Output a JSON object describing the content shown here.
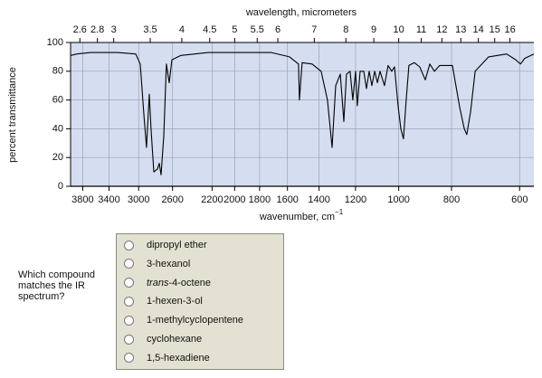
{
  "chart_data": {
    "type": "line",
    "title": "wavelength, micrometers",
    "x_label": "wavenumber, cm",
    "x_label_sup": "−1",
    "y_label": "percent transmittance",
    "xscale": "log",
    "xlim": [
      4000,
      565
    ],
    "ylim": [
      0,
      100
    ],
    "xticks": [
      3800,
      3400,
      3000,
      2600,
      2200,
      2000,
      1800,
      1600,
      1400,
      1200,
      1000,
      800,
      600
    ],
    "x2ticks": [
      2.6,
      2.8,
      3,
      3.5,
      4,
      4.5,
      5,
      5.5,
      6,
      7,
      8,
      9,
      10,
      11,
      12,
      13,
      14,
      15,
      16
    ],
    "yticks": [
      0,
      20,
      40,
      60,
      80,
      100
    ],
    "grid": true,
    "background": "#d5def0",
    "series": [
      {
        "color": "#000000",
        "x": [
          4000,
          3894,
          3677,
          3279,
          3038,
          2980,
          2935,
          2902,
          2868,
          2847,
          2814,
          2771,
          2750,
          2729,
          2698,
          2668,
          2637,
          2607,
          2509,
          2237,
          1913,
          1712,
          1586,
          1550,
          1527,
          1521,
          1504,
          1442,
          1388,
          1351,
          1325,
          1305,
          1280,
          1261,
          1247,
          1228,
          1214,
          1200,
          1191,
          1177,
          1159,
          1146,
          1133,
          1120,
          1107,
          1094,
          1082,
          1062,
          1046,
          1030,
          1018,
          1002,
          991,
          980,
          969,
          958,
          936,
          915,
          894,
          877,
          860,
          841,
          797,
          773,
          758,
          750,
          738,
          724,
          684,
          634,
          610,
          598,
          587,
          565
        ],
        "values": [
          91,
          92,
          93,
          93,
          92,
          85,
          50,
          27,
          64,
          40,
          10,
          12,
          16,
          8,
          35,
          85,
          72,
          88,
          91,
          93,
          93,
          93,
          90,
          87,
          85,
          60,
          86,
          85,
          80,
          60,
          27,
          70,
          78,
          45,
          78,
          80,
          60,
          80,
          56,
          80,
          80,
          68,
          80,
          70,
          80,
          72,
          80,
          70,
          84,
          80,
          83,
          55,
          40,
          33,
          60,
          84,
          86,
          83,
          74,
          85,
          80,
          84,
          84,
          55,
          40,
          36,
          52,
          80,
          90,
          92,
          88,
          85,
          89,
          92
        ]
      }
    ]
  },
  "question": "Which compound matches the IR spectrum?",
  "options": [
    "dipropyl ether",
    "3-hexanol",
    {
      "italic": "trans",
      "rest": "-4-octene"
    },
    "1-hexen-3-ol",
    "1-methylcyclopentene",
    "cyclohexane",
    "1,5-hexadiene"
  ]
}
